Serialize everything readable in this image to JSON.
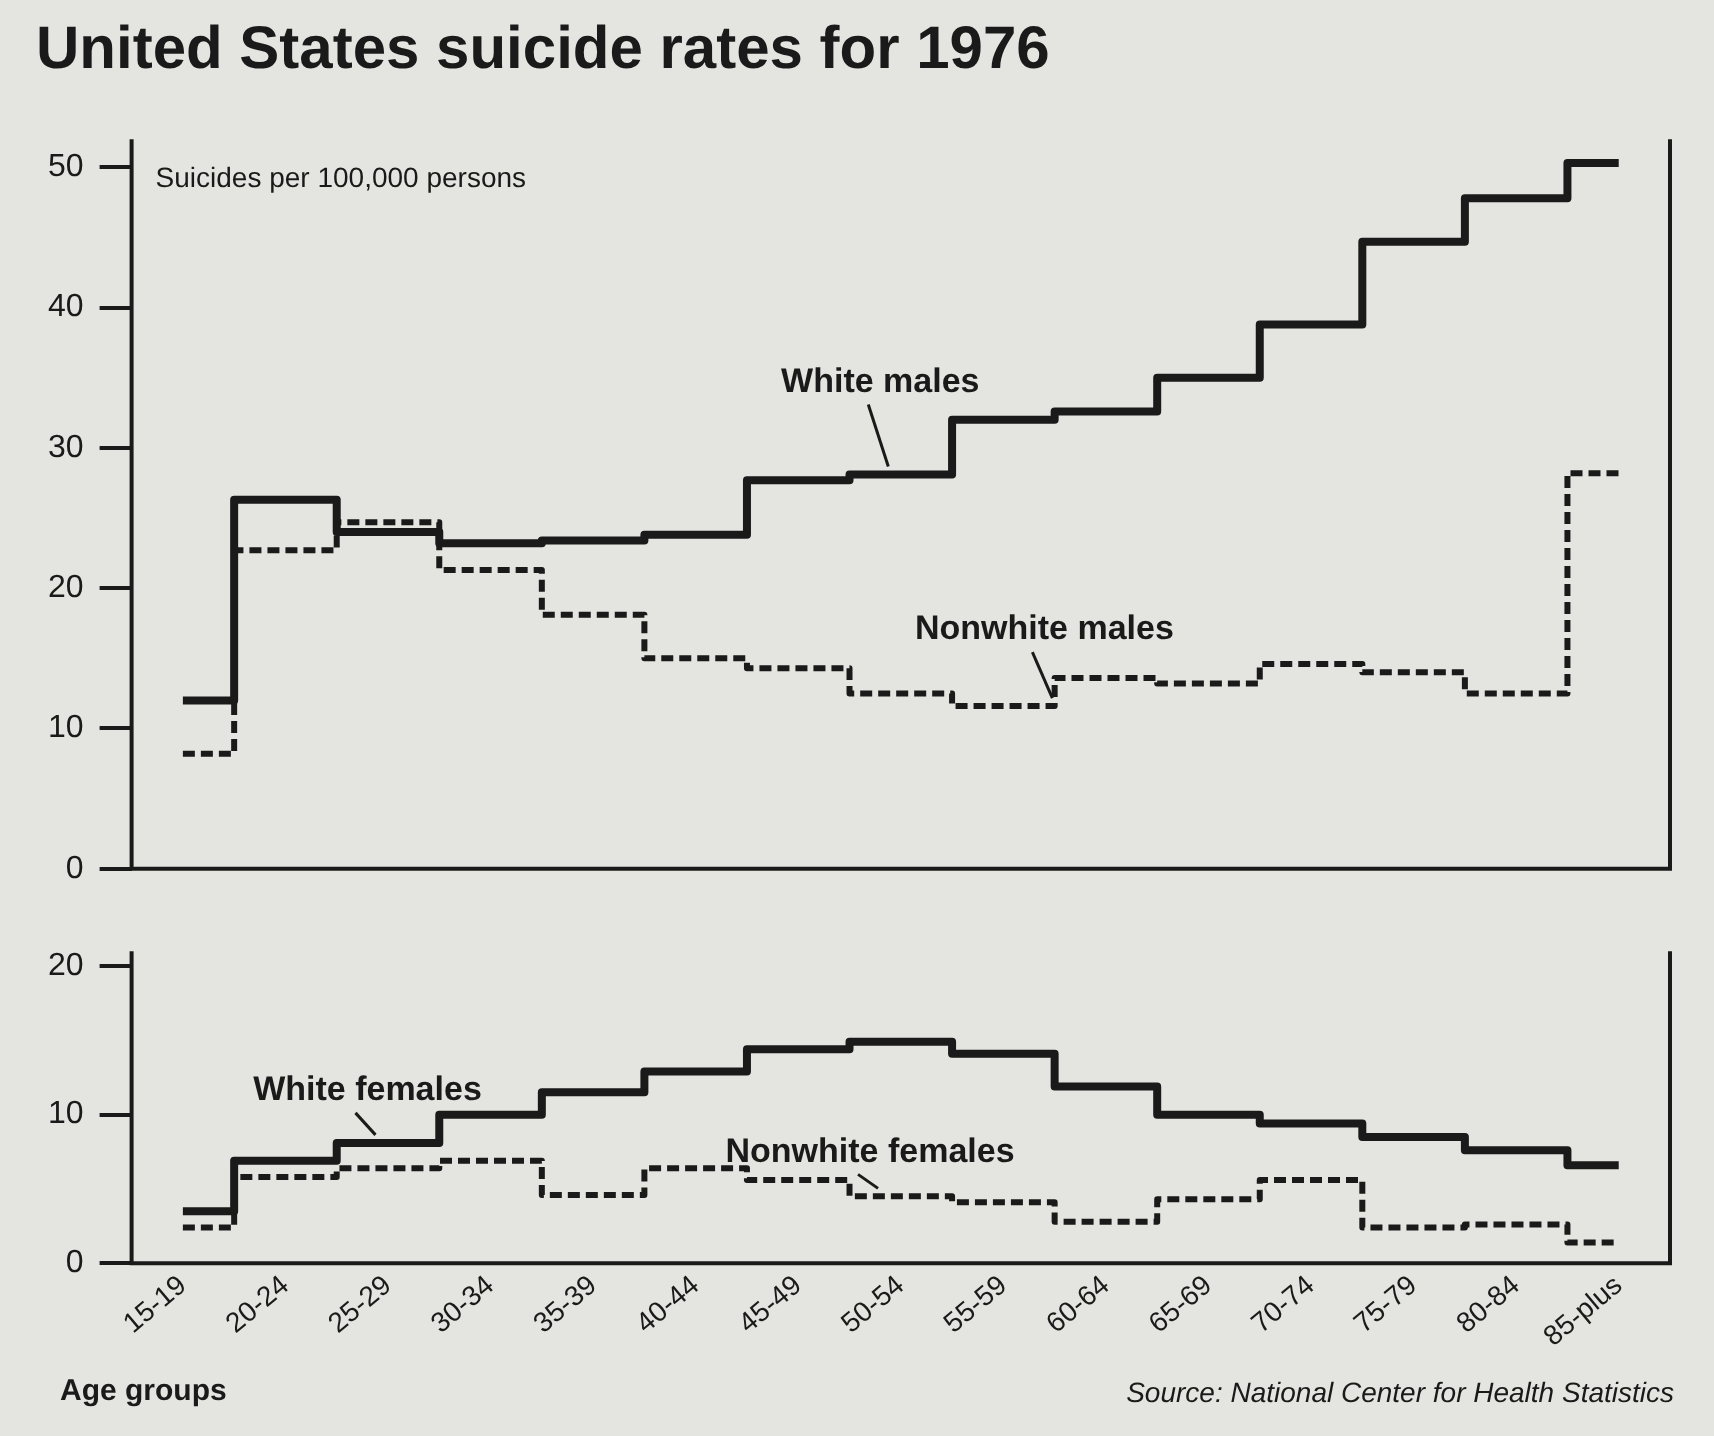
{
  "chart_data": [
    {
      "type": "step",
      "title": "United States suicide rates for 1976",
      "ylabel": "Suicides per 100,000 persons",
      "categories": [
        null,
        null,
        null,
        null,
        null,
        null,
        null,
        null,
        null,
        null,
        null,
        null,
        null,
        null,
        null
      ],
      "ylim": [
        0,
        52
      ],
      "yticks": [
        {
          "value": 0,
          "label": "0"
        },
        {
          "value": 10,
          "label": "10"
        },
        {
          "value": 20,
          "label": "20"
        },
        {
          "value": 30,
          "label": "30"
        },
        {
          "value": 40,
          "label": "40"
        },
        {
          "value": 50,
          "label": "50"
        }
      ],
      "grid": false,
      "legend": false,
      "tick_labels": "y",
      "marker": "none",
      "series": [
        {
          "name": "White males",
          "color": "#1a1a1a",
          "line_style": "solid",
          "values": [
            12,
            26.3,
            24,
            23.2,
            23.4,
            23.8,
            27.7,
            28.1,
            32,
            32.6,
            35,
            38.8,
            44.7,
            47.8,
            50.3
          ]
        },
        {
          "name": "Nonwhite males",
          "color": "#1a1a1a",
          "line_style": "dashed",
          "values": [
            8.2,
            22.7,
            24.7,
            21.3,
            18.1,
            15,
            14.3,
            12.5,
            11.6,
            13.6,
            13.2,
            14.6,
            14,
            12.5,
            28.2
          ]
        }
      ]
    },
    {
      "type": "step",
      "xlabel": "Age groups",
      "categories": [
        "15-19",
        "20-24",
        "25-29",
        "30-34",
        "35-39",
        "40-44",
        "45-49",
        "50-54",
        "55-59",
        "60-64",
        "65-69",
        "70-74",
        "75-79",
        "80-84",
        "85-plus"
      ],
      "ylim": [
        0,
        21
      ],
      "yticks": [
        {
          "value": 0,
          "label": "0"
        },
        {
          "value": 10,
          "label": "10"
        },
        {
          "value": 20,
          "label": "20"
        }
      ],
      "grid": false,
      "legend": false,
      "marker": "none",
      "annotations": [
        "Source: National Center for Health Statistics"
      ],
      "series": [
        {
          "name": "White females",
          "color": "#1a1a1a",
          "line_style": "solid",
          "values": [
            3.5,
            6.9,
            8.1,
            10,
            11.5,
            12.9,
            14.4,
            14.9,
            14.1,
            11.9,
            10,
            9.4,
            8.5,
            7.6,
            6.6
          ]
        },
        {
          "name": "Nonwhite females",
          "color": "#1a1a1a",
          "line_style": "dashed",
          "values": [
            2.4,
            5.8,
            6.4,
            6.9,
            4.6,
            6.4,
            5.6,
            4.5,
            4.1,
            2.8,
            4.3,
            5.6,
            2.4,
            2.6,
            1.4
          ]
        }
      ]
    }
  ]
}
